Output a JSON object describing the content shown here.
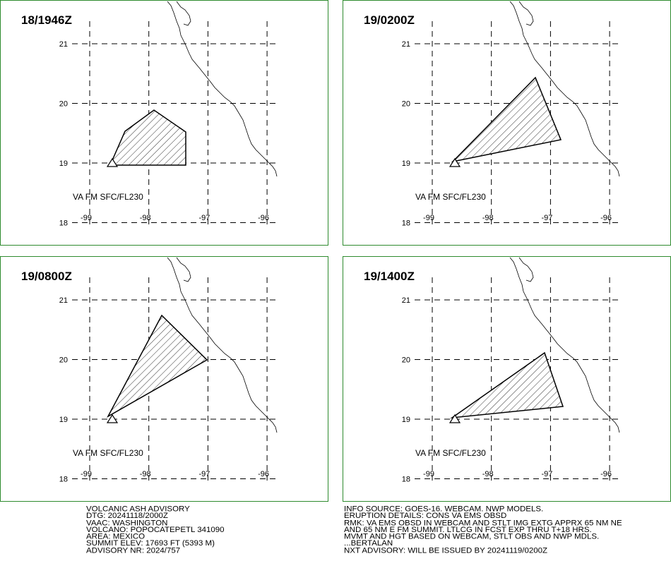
{
  "panels": [
    {
      "title": "18/1946Z",
      "annotation": "VA FM SFC/FL230",
      "lat_labels": [
        21,
        20,
        19,
        18
      ],
      "lon_labels": [
        -99,
        -98,
        -97,
        -96
      ]
    },
    {
      "title": "19/0200Z",
      "annotation": "VA FM SFC/FL230",
      "lat_labels": [
        21,
        20,
        19,
        18
      ],
      "lon_labels": [
        -99,
        -98,
        -97,
        -96
      ]
    },
    {
      "title": "19/0800Z",
      "annotation": "VA FM SFC/FL230",
      "lat_labels": [
        21,
        20,
        19,
        18
      ],
      "lon_labels": [
        -99,
        -98,
        -97,
        -96
      ]
    },
    {
      "title": "19/1400Z",
      "annotation": "VA FM SFC/FL230",
      "lat_labels": [
        21,
        20,
        19,
        18
      ],
      "lon_labels": [
        -99,
        -98,
        -97,
        -96
      ]
    }
  ],
  "advisory_left": [
    "VOLCANIC ASH ADVISORY",
    "DTG: 20241118/2000Z",
    "VAAC: WASHINGTON",
    "VOLCANO: POPOCATEPETL 341090",
    "AREA: MEXICO",
    "SUMMIT ELEV: 17693 FT (5393 M)",
    "ADVISORY NR: 2024/757"
  ],
  "advisory_right": [
    "INFO SOURCE: GOES-16. WEBCAM. NWP MODELS.",
    "ERUPTION DETAILS: CONS VA EMS OBSD",
    "RMK: VA EMS OBSD IN WEBCAM AND STLT IMG EXTG APPRX 65 NM NE",
    "AND 65 NM E FM SUMMIT. LTLCG IN FCST EXP THRU T+18 HRS.",
    "MVMT AND HGT BASED ON WEBCAM, STLT OBS AND NWP MDLS.",
    "...BERTALAN",
    "NXT ADVISORY: WILL BE ISSUED BY 20241119/0200Z"
  ]
}
